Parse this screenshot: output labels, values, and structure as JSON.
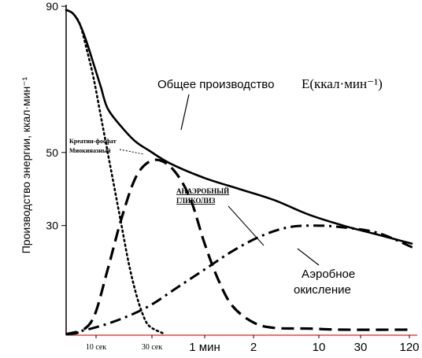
{
  "chart_data": {
    "type": "line",
    "ylabel": "Производство энергии, ккал·мин⁻¹",
    "xlabel": "",
    "title": "",
    "ylim": [
      0,
      90
    ],
    "x_ticks": [
      {
        "label": "10 сек",
        "style": "small"
      },
      {
        "label": "30 сек",
        "style": "small"
      },
      {
        "label": "1 мин",
        "style": "big"
      },
      {
        "label": "2",
        "style": "big"
      },
      {
        "label": "10",
        "style": "big"
      },
      {
        "label": "30",
        "style": "big"
      },
      {
        "label": "120",
        "style": "big"
      }
    ],
    "y_ticks": [
      90,
      50,
      30
    ],
    "grid": false,
    "series": [
      {
        "name": "Общее производство E(ккал·мин⁻¹)",
        "style": "solid",
        "points": [
          [
            0,
            89
          ],
          [
            0.1,
            88
          ],
          [
            0.2,
            85
          ],
          [
            0.3,
            80
          ],
          [
            0.4,
            74
          ],
          [
            0.5,
            68
          ],
          [
            0.6,
            62
          ],
          [
            0.8,
            57
          ],
          [
            1.0,
            53
          ],
          [
            1.2,
            50.5
          ],
          [
            1.5,
            47
          ],
          [
            2.0,
            43
          ],
          [
            2.5,
            40
          ],
          [
            3.0,
            37
          ],
          [
            3.5,
            33
          ],
          [
            4.0,
            30
          ],
          [
            4.5,
            27.5
          ],
          [
            5.0,
            25
          ]
        ]
      },
      {
        "name": "Креатин-фосфат Миокиназный",
        "style": "dotted",
        "points": [
          [
            0,
            89
          ],
          [
            0.1,
            88
          ],
          [
            0.2,
            85
          ],
          [
            0.3,
            78
          ],
          [
            0.4,
            70
          ],
          [
            0.5,
            60
          ],
          [
            0.6,
            50
          ],
          [
            0.7,
            40
          ],
          [
            0.8,
            30
          ],
          [
            0.9,
            20
          ],
          [
            1.0,
            12
          ],
          [
            1.1,
            6
          ],
          [
            1.2,
            2.5
          ],
          [
            1.4,
            0.5
          ]
        ]
      },
      {
        "name": "Анаэробный гликолиз",
        "style": "dashed",
        "points": [
          [
            0,
            0.3
          ],
          [
            0.2,
            1
          ],
          [
            0.4,
            5
          ],
          [
            0.6,
            18
          ],
          [
            0.8,
            32
          ],
          [
            1.0,
            43
          ],
          [
            1.2,
            47.5
          ],
          [
            1.4,
            47.5
          ],
          [
            1.6,
            44
          ],
          [
            1.8,
            37
          ],
          [
            2.0,
            25
          ],
          [
            2.2,
            15
          ],
          [
            2.4,
            8
          ],
          [
            2.7,
            3.5
          ],
          [
            3.0,
            2
          ],
          [
            3.5,
            1.8
          ],
          [
            4.0,
            1.5
          ],
          [
            5.0,
            1.5
          ]
        ]
      },
      {
        "name": "Аэробное окисление",
        "style": "dashdot",
        "points": [
          [
            0,
            0.3
          ],
          [
            0.4,
            2
          ],
          [
            0.8,
            4.5
          ],
          [
            1.2,
            8
          ],
          [
            1.6,
            13
          ],
          [
            2.0,
            18
          ],
          [
            2.4,
            23
          ],
          [
            2.8,
            27
          ],
          [
            3.2,
            29.5
          ],
          [
            3.6,
            30
          ],
          [
            4.0,
            29.5
          ],
          [
            4.5,
            28
          ],
          [
            5.0,
            24
          ]
        ]
      }
    ],
    "annotations": [
      {
        "text": "Общее производство",
        "style": "big"
      },
      {
        "text": "E(ккал·мин⁻¹)",
        "style": "serif"
      },
      {
        "text": "Креатин-фосфат",
        "style": "small"
      },
      {
        "text": "Миокиназный",
        "style": "small"
      },
      {
        "text": "АНАЭРОБНЫЙ",
        "style": "anaer"
      },
      {
        "text": "ГЛИКОЛИЗ",
        "style": "anaer"
      },
      {
        "text": "Аэробное",
        "style": "big"
      },
      {
        "text": "окисление",
        "style": "big"
      }
    ],
    "colors": {
      "axis_x": "#ff6b6b",
      "axis_y": "#000000",
      "lines": "#000000",
      "background": "#ffffff"
    }
  }
}
